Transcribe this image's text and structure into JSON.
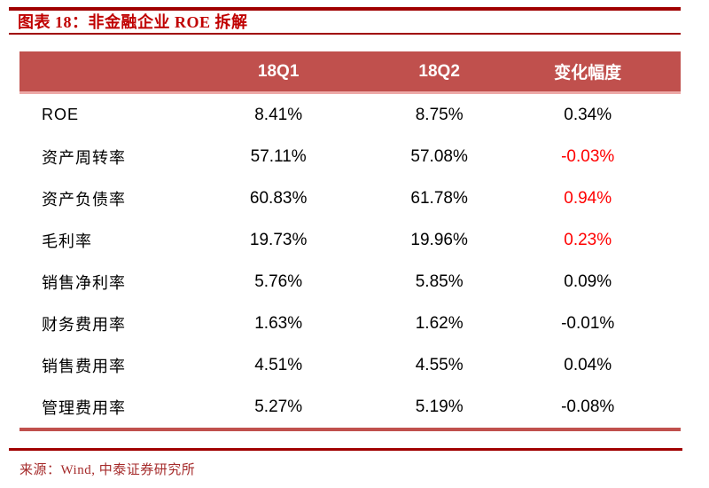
{
  "figure": {
    "title": "图表 18：非金融企业 ROE 拆解",
    "source": "来源：Wind, 中泰证券研究所"
  },
  "chart_data": {
    "type": "table",
    "title": "图表 18：非金融企业 ROE 拆解",
    "columns": [
      "",
      "18Q1",
      "18Q2",
      "变化幅度"
    ],
    "rows": [
      {
        "label": "ROE",
        "q1": "8.41%",
        "q2": "8.75%",
        "change": "0.34%",
        "change_highlight": false
      },
      {
        "label": "资产周转率",
        "q1": "57.11%",
        "q2": "57.08%",
        "change": "-0.03%",
        "change_highlight": true
      },
      {
        "label": "资产负债率",
        "q1": "60.83%",
        "q2": "61.78%",
        "change": "0.94%",
        "change_highlight": true
      },
      {
        "label": "毛利率",
        "q1": "19.73%",
        "q2": "19.96%",
        "change": "0.23%",
        "change_highlight": true
      },
      {
        "label": "销售净利率",
        "q1": "5.76%",
        "q2": "5.85%",
        "change": "0.09%",
        "change_highlight": false
      },
      {
        "label": "财务费用率",
        "q1": "1.63%",
        "q2": "1.62%",
        "change": "-0.01%",
        "change_highlight": false
      },
      {
        "label": "销售费用率",
        "q1": "4.51%",
        "q2": "4.55%",
        "change": "0.04%",
        "change_highlight": false
      },
      {
        "label": "管理费用率",
        "q1": "5.27%",
        "q2": "5.19%",
        "change": "-0.08%",
        "change_highlight": false
      }
    ],
    "source": "来源：Wind, 中泰证券研究所",
    "layout": {
      "grid": "off",
      "header_position": "top"
    }
  },
  "colors": {
    "title_red": "#C00000",
    "rule_dark_red": "#A00000",
    "header_bg": "#C0504D",
    "header_text": "#FFFFFF",
    "header_divider": "#EDA9A7",
    "table_bottom_border": "#C0504D",
    "body_text": "#000000",
    "highlight_red": "#FF0000",
    "source_red": "#A52A2A"
  }
}
